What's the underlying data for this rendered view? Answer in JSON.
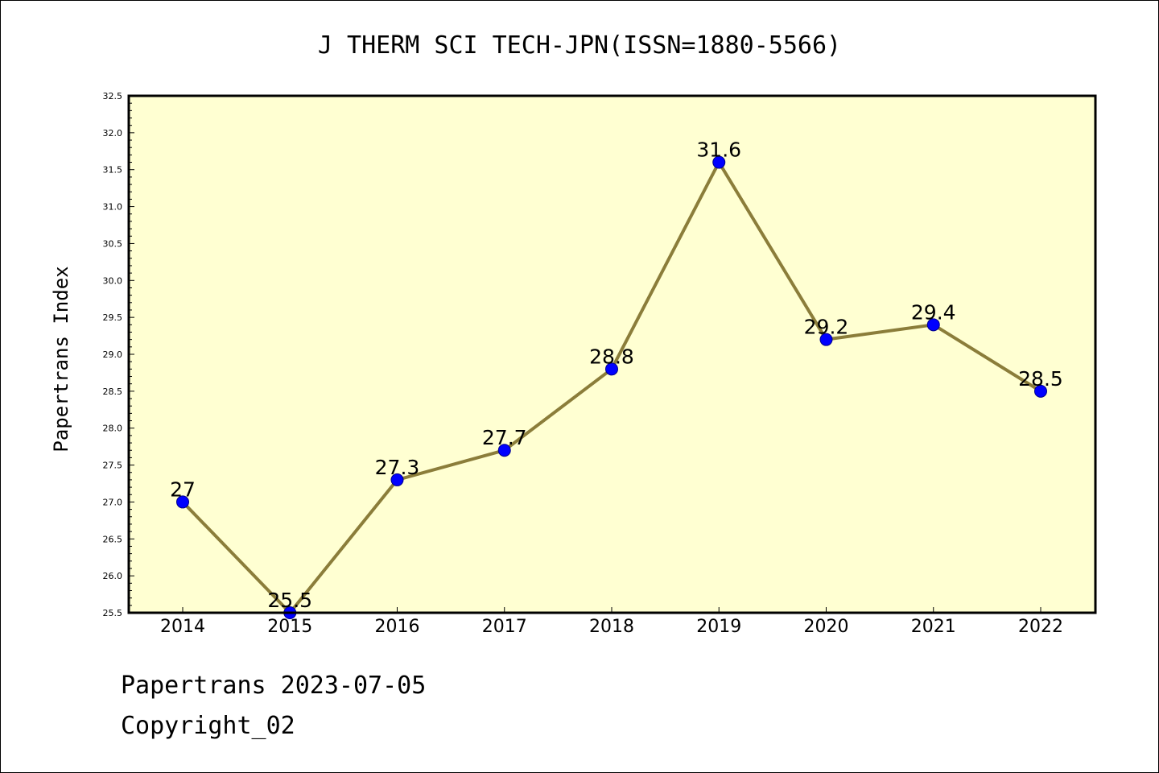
{
  "chart_data": {
    "type": "line",
    "title": "J THERM SCI TECH-JPN(ISSN=1880-5566)",
    "xlabel": "",
    "ylabel": "Papertrans Index",
    "categories": [
      "2014",
      "2015",
      "2016",
      "2017",
      "2018",
      "2019",
      "2020",
      "2021",
      "2022"
    ],
    "values": [
      27.0,
      25.5,
      27.3,
      27.7,
      28.8,
      31.6,
      29.2,
      29.4,
      28.5
    ],
    "data_labels": [
      "27",
      "25.5",
      "27.3",
      "27.7",
      "28.8",
      "31.6",
      "29.2",
      "29.4",
      "28.5"
    ],
    "ylim": [
      25.5,
      32.5
    ],
    "yticks": [
      "25.5",
      "26.0",
      "26.5",
      "27.0",
      "27.5",
      "28.0",
      "28.5",
      "29.0",
      "29.5",
      "30.0",
      "30.5",
      "31.0",
      "31.5",
      "32.0",
      "32.5"
    ],
    "grid": false,
    "legend": "none",
    "colors": {
      "plot_background": "#ffffd2",
      "line": "#8b7d3a",
      "marker_fill": "#0000ff",
      "marker_edge": "#00008b",
      "axes": "#000000"
    }
  },
  "footer": {
    "line1": "Papertrans 2023-07-05",
    "line2": "Copyright_02"
  }
}
